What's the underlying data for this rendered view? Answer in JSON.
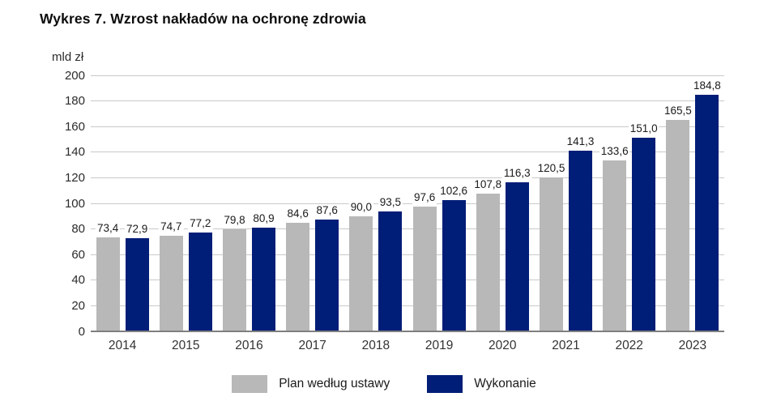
{
  "title": "Wykres 7. Wzrost nakładów na ochronę zdrowia",
  "colors": {
    "plan": "#b8b8b8",
    "execution": "#001d77",
    "grid": "#c9c9c9",
    "axis": "#7f7f7f"
  },
  "chart_data": {
    "type": "bar",
    "title": "Wykres 7. Wzrost nakładów na ochronę zdrowia",
    "unit_label": "mld zł",
    "xlabel": "",
    "ylabel": "mld zł",
    "categories": [
      "2014",
      "2015",
      "2016",
      "2017",
      "2018",
      "2019",
      "2020",
      "2021",
      "2022",
      "2023"
    ],
    "series": [
      {
        "name": "Plan według ustawy",
        "color_key": "plan",
        "values": [
          73.4,
          74.7,
          79.8,
          84.6,
          90.0,
          97.6,
          107.8,
          120.5,
          133.6,
          165.5
        ]
      },
      {
        "name": "Wykonanie",
        "color_key": "execution",
        "values": [
          72.9,
          77.2,
          80.9,
          87.6,
          93.5,
          102.6,
          116.3,
          141.3,
          151.0,
          184.8
        ]
      }
    ],
    "data_labels": [
      [
        "73,4",
        "74,7",
        "79,8",
        "84,6",
        "90,0",
        "97,6",
        "107,8",
        "120,5",
        "133,6",
        "165,5"
      ],
      [
        "72,9",
        "77,2",
        "80,9",
        "87,6",
        "93,5",
        "102,6",
        "116,3",
        "141,3",
        "151,0",
        "184,8"
      ]
    ],
    "y_ticks": [
      0,
      20,
      40,
      60,
      80,
      100,
      120,
      140,
      160,
      180,
      200
    ],
    "ylim": [
      0,
      200
    ],
    "grid": true,
    "legend_position": "bottom",
    "decimal_separator": ","
  }
}
